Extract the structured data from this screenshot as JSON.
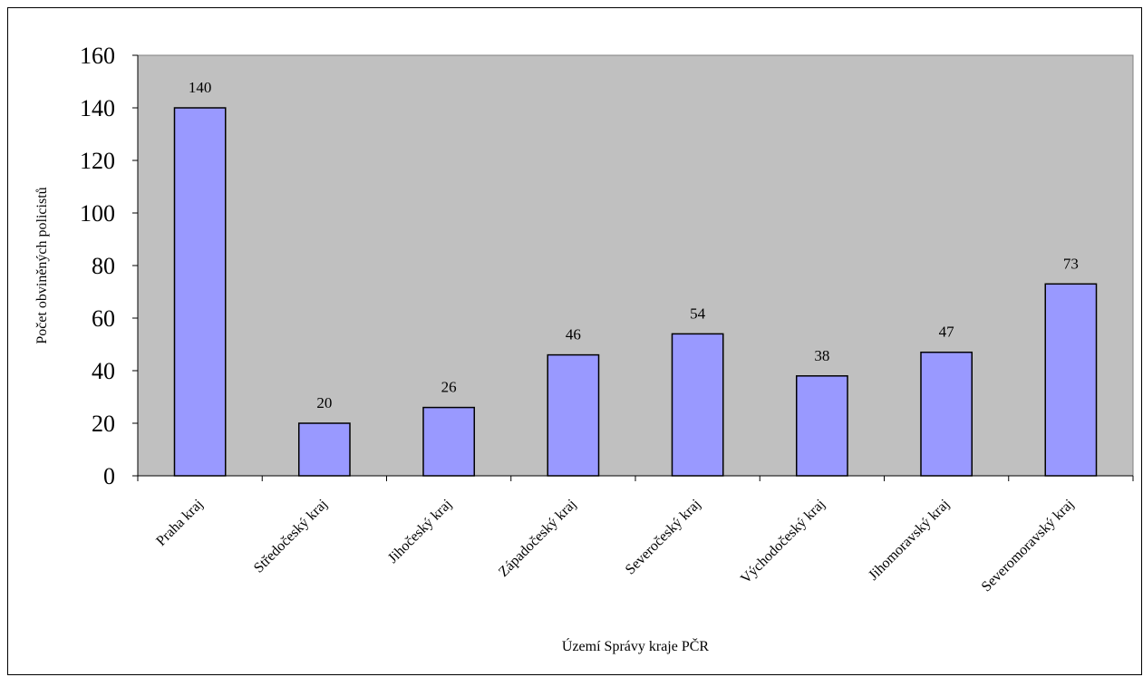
{
  "chart_data": {
    "type": "bar",
    "title": "",
    "xlabel": "Území Správy kraje PČR",
    "ylabel": "Počet obviněných policistů",
    "categories": [
      "Praha kraj",
      "Středočeský kraj",
      "Jihočeský kraj",
      "Západočeský kraj",
      "Severočeský kraj",
      "Východočeský kraj",
      "Jihomoravský kraj",
      "Severomoravský kraj"
    ],
    "values": [
      140,
      20,
      26,
      46,
      54,
      38,
      47,
      73
    ],
    "data_labels": [
      "140",
      "20",
      "26",
      "46",
      "54",
      "38",
      "47",
      "73"
    ],
    "ylim": [
      0,
      160
    ],
    "yticks": [
      "0",
      "20",
      "40",
      "60",
      "80",
      "100",
      "120",
      "140",
      "160"
    ],
    "grid": false,
    "legend": "none",
    "colors": {
      "bar_fill": "#9999ff",
      "bar_stroke": "#000000",
      "plot_background": "#c0c0c0",
      "page_background": "#ffffff"
    }
  }
}
